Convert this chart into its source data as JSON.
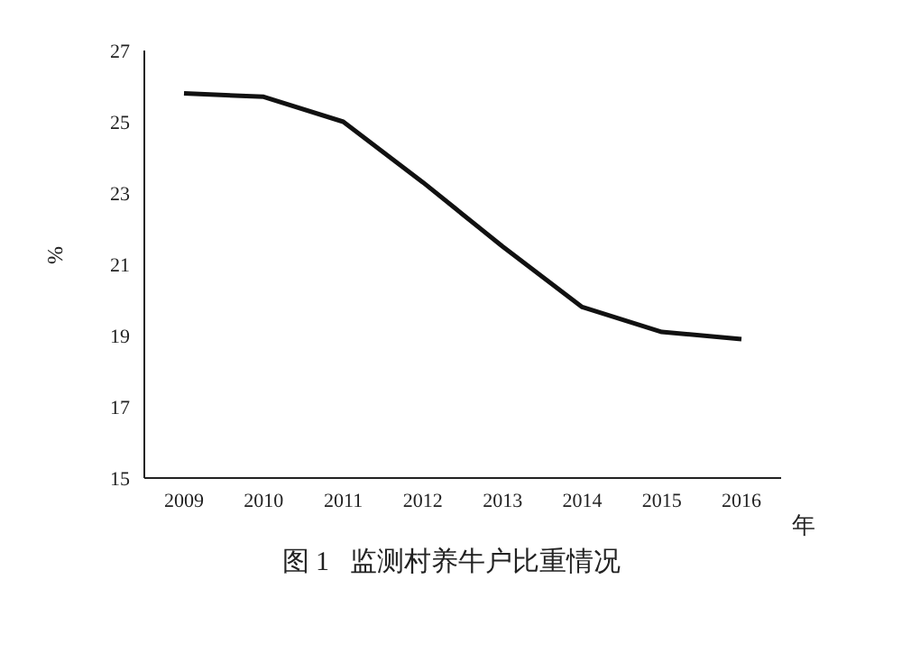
{
  "chart_data": {
    "type": "line",
    "title": "图 1   监测村养牛户比重情况",
    "xlabel": "年",
    "ylabel": "%",
    "categories": [
      "2009",
      "2010",
      "2011",
      "2012",
      "2013",
      "2014",
      "2015",
      "2016"
    ],
    "series": [
      {
        "color": "#111111",
        "values": [
          25.8,
          25.7,
          25.0,
          23.3,
          21.5,
          19.8,
          19.1,
          18.9
        ]
      }
    ],
    "ylim": [
      15,
      27
    ],
    "yticks": [
      15,
      17,
      19,
      21,
      23,
      25,
      27
    ],
    "grid": false,
    "legend": false,
    "marker": "none",
    "line_style": "solid"
  }
}
